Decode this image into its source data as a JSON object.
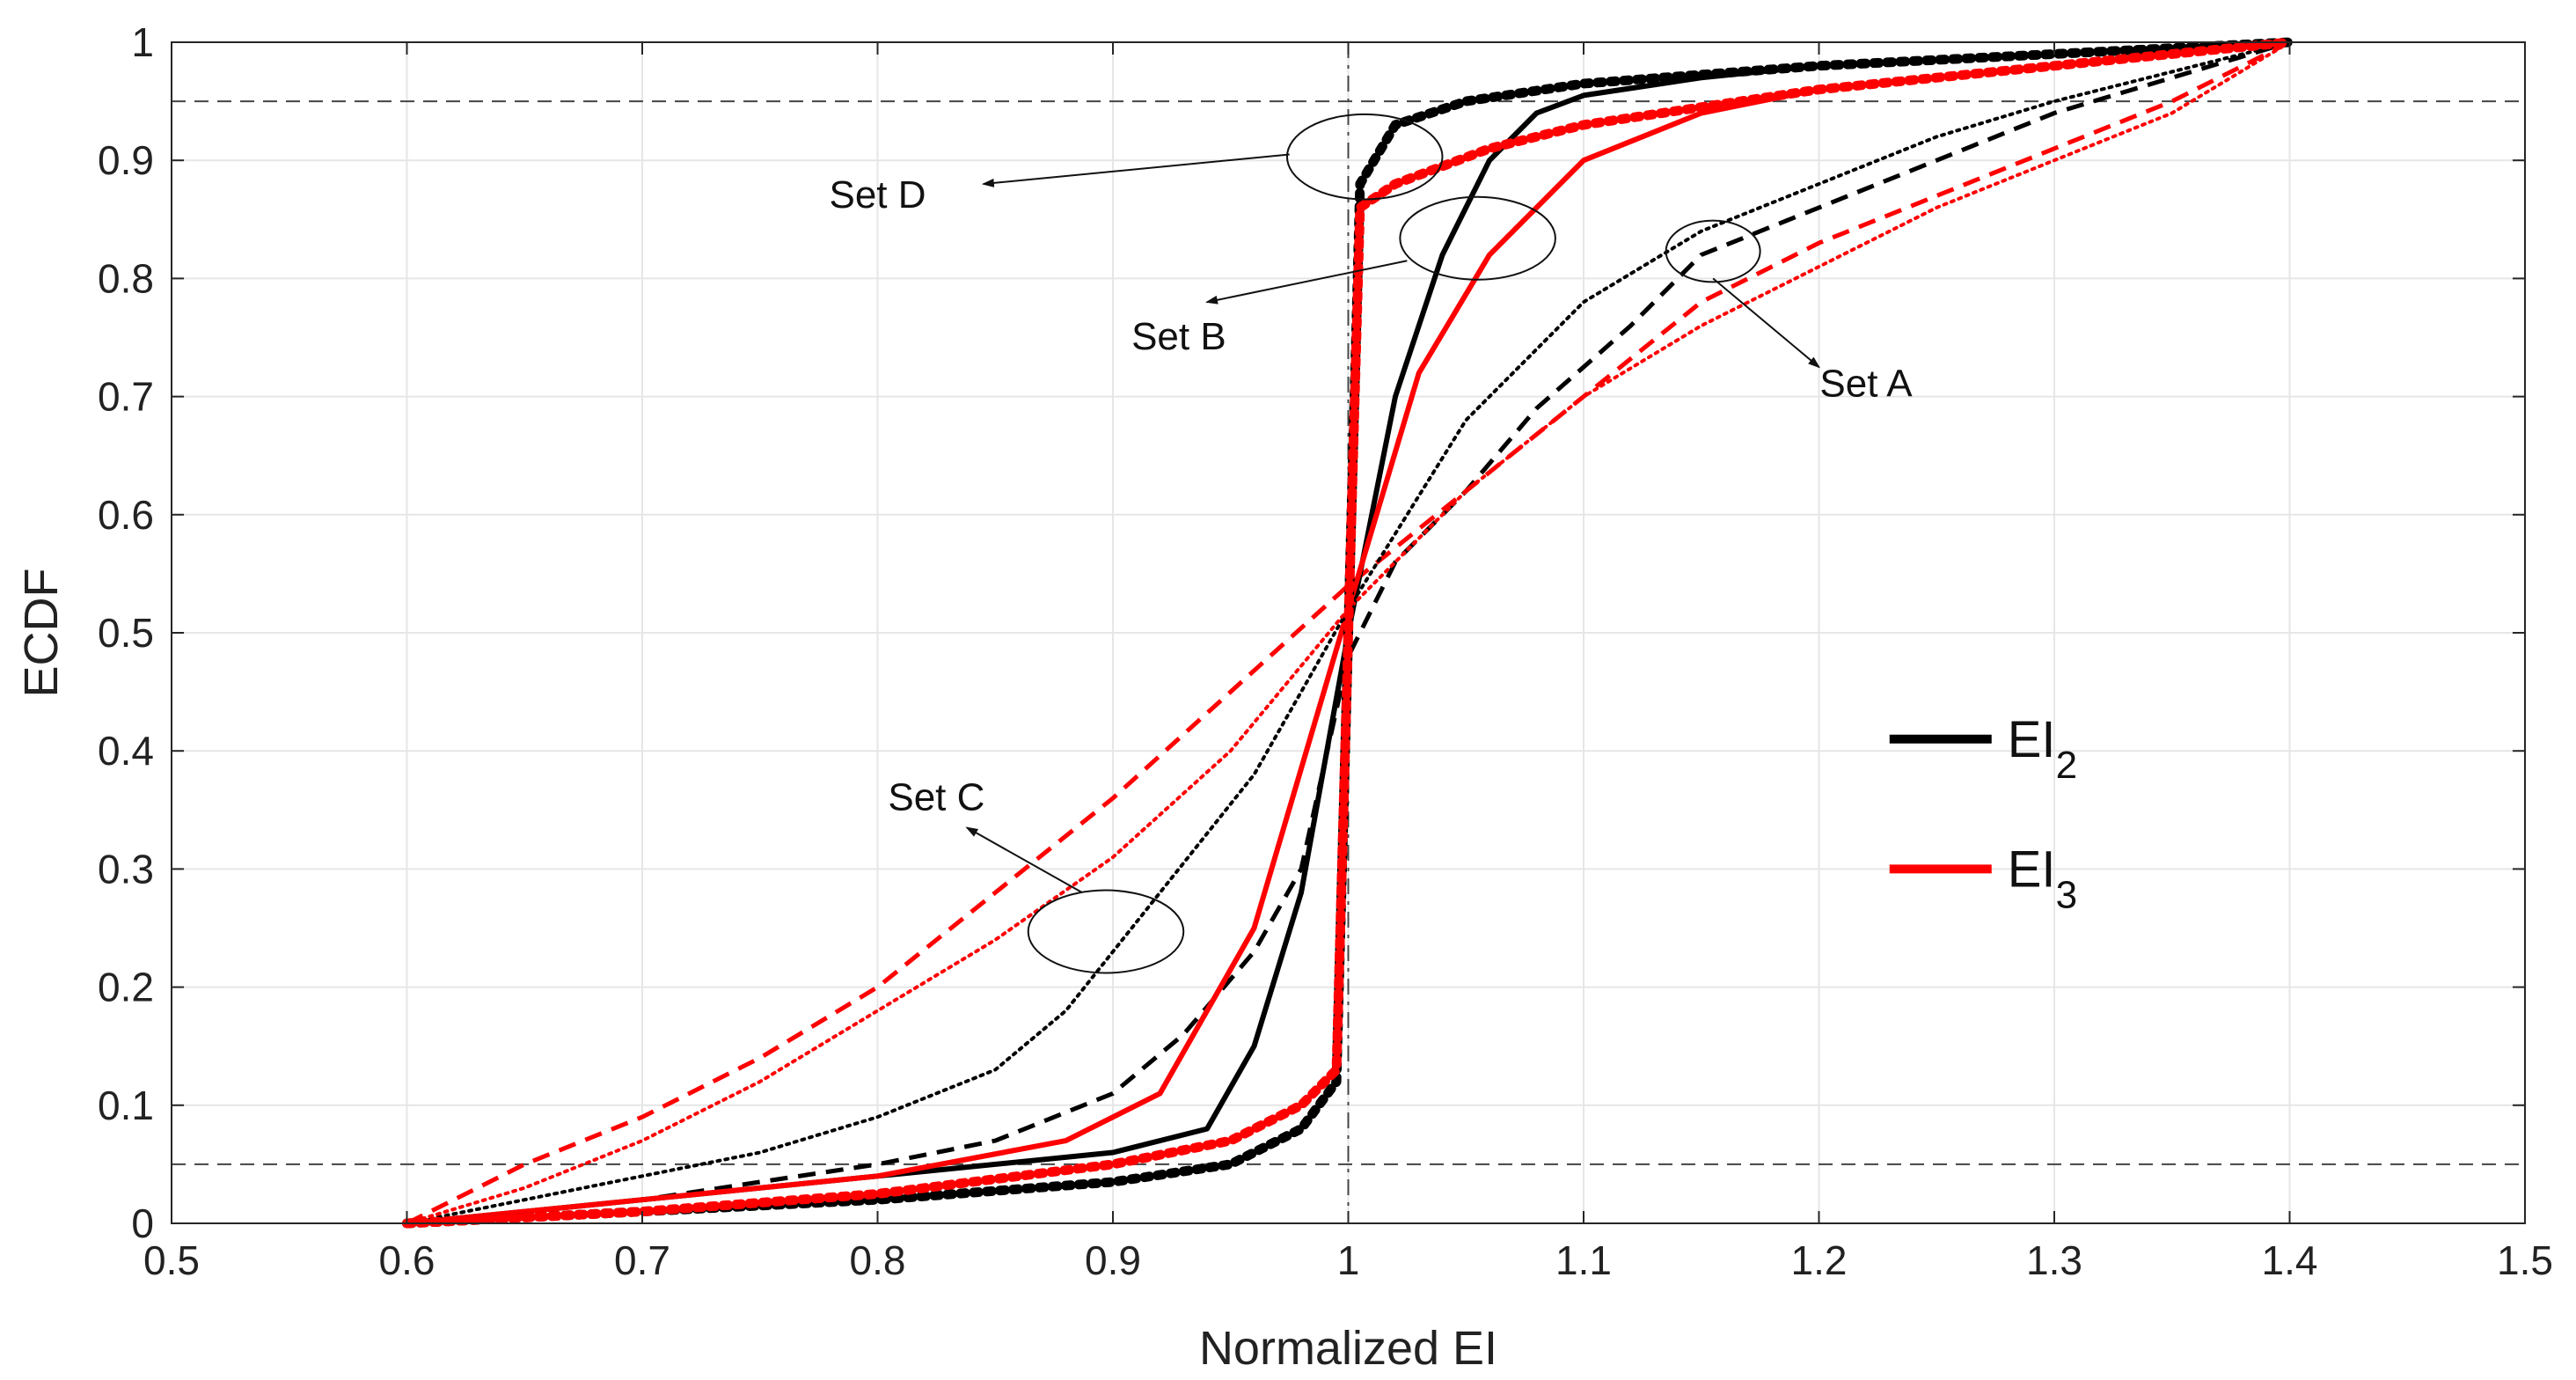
{
  "chart_data": {
    "type": "line",
    "title": "",
    "xlabel": "Normalized EI",
    "ylabel": "ECDF",
    "xlim": [
      0.5,
      1.5
    ],
    "ylim": [
      0,
      1
    ],
    "x_ticks": [
      0.5,
      0.6,
      0.7,
      0.8,
      0.9,
      1,
      1.1,
      1.2,
      1.3,
      1.4,
      1.5
    ],
    "y_ticks": [
      0,
      0.1,
      0.2,
      0.3,
      0.4,
      0.5,
      0.6,
      0.7,
      0.8,
      0.9,
      1
    ],
    "x_tick_labels": [
      "0.5",
      "0.6",
      "0.7",
      "0.8",
      "0.9",
      "1",
      "1.1",
      "1.2",
      "1.3",
      "1.4",
      "1.5"
    ],
    "y_tick_labels": [
      "0",
      "0.1",
      "0.2",
      "0.3",
      "0.4",
      "0.5",
      "0.6",
      "0.7",
      "0.8",
      "0.9",
      "1"
    ],
    "grid": true,
    "reference_lines": [
      {
        "orientation": "horizontal",
        "value": 0.05,
        "style": "dashed"
      },
      {
        "orientation": "horizontal",
        "value": 0.95,
        "style": "dashed"
      },
      {
        "orientation": "vertical",
        "value": 1.0,
        "style": "dashdot"
      }
    ],
    "colors": {
      "EI2": "#000000",
      "EI3": "#ff0000",
      "grid": "#e6e6e6",
      "axis": "#262626"
    },
    "legend": {
      "position": "right",
      "entries": [
        {
          "label": "EI",
          "subscript": "2",
          "color": "#000000"
        },
        {
          "label": "EI",
          "subscript": "3",
          "color": "#ff0000"
        }
      ]
    },
    "series": [
      {
        "name": "Set A EI2",
        "set": "A",
        "metric": "EI2",
        "color": "#000000",
        "style": "dashed",
        "x": [
          0.6,
          0.65,
          0.7,
          0.75,
          0.8,
          0.85,
          0.9,
          0.93,
          0.96,
          0.98,
          1.0,
          1.02,
          1.05,
          1.08,
          1.12,
          1.15,
          1.2,
          1.25,
          1.3,
          1.35,
          1.4
        ],
        "y": [
          0.0,
          0.01,
          0.02,
          0.035,
          0.05,
          0.07,
          0.11,
          0.16,
          0.23,
          0.3,
          0.48,
          0.56,
          0.62,
          0.69,
          0.76,
          0.82,
          0.86,
          0.9,
          0.94,
          0.97,
          1.0
        ]
      },
      {
        "name": "Set A EI3",
        "set": "A",
        "metric": "EI3",
        "color": "#ff0000",
        "style": "dashed",
        "x": [
          0.6,
          0.65,
          0.7,
          0.75,
          0.8,
          0.85,
          0.9,
          0.95,
          1.0,
          1.05,
          1.1,
          1.15,
          1.2,
          1.25,
          1.3,
          1.35,
          1.4
        ],
        "y": [
          0.0,
          0.05,
          0.09,
          0.14,
          0.2,
          0.28,
          0.36,
          0.45,
          0.54,
          0.62,
          0.7,
          0.78,
          0.83,
          0.87,
          0.91,
          0.95,
          1.0
        ]
      },
      {
        "name": "Set B EI2",
        "set": "B",
        "metric": "EI2",
        "color": "#000000",
        "style": "solid",
        "x": [
          0.6,
          0.7,
          0.8,
          0.9,
          0.94,
          0.96,
          0.98,
          1.0,
          1.02,
          1.04,
          1.06,
          1.08,
          1.1,
          1.15,
          1.2,
          1.3,
          1.4
        ],
        "y": [
          0.0,
          0.02,
          0.04,
          0.06,
          0.08,
          0.15,
          0.28,
          0.5,
          0.7,
          0.82,
          0.9,
          0.94,
          0.955,
          0.97,
          0.98,
          0.99,
          1.0
        ]
      },
      {
        "name": "Set B EI3",
        "set": "B",
        "metric": "EI3",
        "color": "#ff0000",
        "style": "solid",
        "x": [
          0.6,
          0.7,
          0.8,
          0.88,
          0.92,
          0.96,
          1.0,
          1.03,
          1.06,
          1.1,
          1.15,
          1.2,
          1.3,
          1.4
        ],
        "y": [
          0.0,
          0.02,
          0.04,
          0.07,
          0.11,
          0.25,
          0.52,
          0.72,
          0.82,
          0.9,
          0.94,
          0.96,
          0.98,
          1.0
        ]
      },
      {
        "name": "Set C EI2",
        "set": "C",
        "metric": "EI2",
        "color": "#000000",
        "style": "dotted",
        "x": [
          0.6,
          0.65,
          0.7,
          0.75,
          0.8,
          0.85,
          0.88,
          0.92,
          0.96,
          1.0,
          1.05,
          1.1,
          1.15,
          1.2,
          1.25,
          1.3,
          1.35,
          1.4
        ],
        "y": [
          0.0,
          0.02,
          0.04,
          0.06,
          0.09,
          0.13,
          0.18,
          0.28,
          0.38,
          0.52,
          0.68,
          0.78,
          0.84,
          0.88,
          0.92,
          0.95,
          0.975,
          1.0
        ]
      },
      {
        "name": "Set C EI3",
        "set": "C",
        "metric": "EI3",
        "color": "#ff0000",
        "style": "dotted",
        "x": [
          0.6,
          0.65,
          0.7,
          0.75,
          0.8,
          0.85,
          0.9,
          0.95,
          1.0,
          1.05,
          1.1,
          1.15,
          1.2,
          1.25,
          1.3,
          1.35,
          1.4
        ],
        "y": [
          0.0,
          0.03,
          0.07,
          0.12,
          0.18,
          0.24,
          0.31,
          0.4,
          0.52,
          0.62,
          0.7,
          0.76,
          0.81,
          0.86,
          0.9,
          0.94,
          1.0
        ]
      },
      {
        "name": "Set D EI2",
        "set": "D",
        "metric": "EI2",
        "color": "#000000",
        "style": "thick-dotted",
        "x": [
          0.6,
          0.7,
          0.8,
          0.9,
          0.95,
          0.98,
          0.995,
          1.0,
          1.005,
          1.02,
          1.05,
          1.1,
          1.2,
          1.3,
          1.4
        ],
        "y": [
          0.0,
          0.01,
          0.02,
          0.035,
          0.05,
          0.08,
          0.12,
          0.5,
          0.88,
          0.93,
          0.95,
          0.965,
          0.98,
          0.99,
          1.0
        ]
      },
      {
        "name": "Set D EI3",
        "set": "D",
        "metric": "EI3",
        "color": "#ff0000",
        "style": "thick-dotted",
        "x": [
          0.6,
          0.7,
          0.8,
          0.9,
          0.95,
          0.98,
          0.995,
          1.0,
          1.005,
          1.02,
          1.06,
          1.1,
          1.2,
          1.3,
          1.4
        ],
        "y": [
          0.0,
          0.01,
          0.025,
          0.05,
          0.07,
          0.1,
          0.13,
          0.5,
          0.86,
          0.88,
          0.91,
          0.93,
          0.96,
          0.98,
          1.0
        ]
      }
    ],
    "annotations": [
      {
        "text": "Set A",
        "ellipse_center": [
          1.155,
          0.823
        ],
        "ellipse_radii": [
          0.02,
          0.026
        ],
        "label_at": [
          1.22,
          0.7
        ],
        "label_anchor": [
          1.21,
          0.735
        ],
        "arrow_from": [
          1.155,
          0.8
        ],
        "arrow_to": [
          1.2,
          0.725
        ]
      },
      {
        "text": "Set B",
        "ellipse_center": [
          1.055,
          0.834
        ],
        "ellipse_radii": [
          0.033,
          0.035
        ],
        "label_at": [
          0.928,
          0.74
        ],
        "label_anchor": [
          0.935,
          0.775
        ],
        "arrow_from": [
          1.025,
          0.815
        ],
        "arrow_to": [
          0.94,
          0.78
        ]
      },
      {
        "text": "Set C",
        "ellipse_center": [
          0.897,
          0.247
        ],
        "ellipse_radii": [
          0.033,
          0.035
        ],
        "label_at": [
          0.825,
          0.35
        ],
        "label_anchor": [
          0.835,
          0.335
        ],
        "arrow_from": [
          0.887,
          0.28
        ],
        "arrow_to": [
          0.838,
          0.335
        ]
      },
      {
        "text": "Set D",
        "ellipse_center": [
          1.007,
          0.903
        ],
        "ellipse_radii": [
          0.033,
          0.036
        ],
        "label_at": [
          0.8,
          0.86
        ],
        "label_anchor": [
          0.84,
          0.88
        ],
        "arrow_from": [
          0.975,
          0.905
        ],
        "arrow_to": [
          0.845,
          0.88
        ]
      }
    ]
  }
}
